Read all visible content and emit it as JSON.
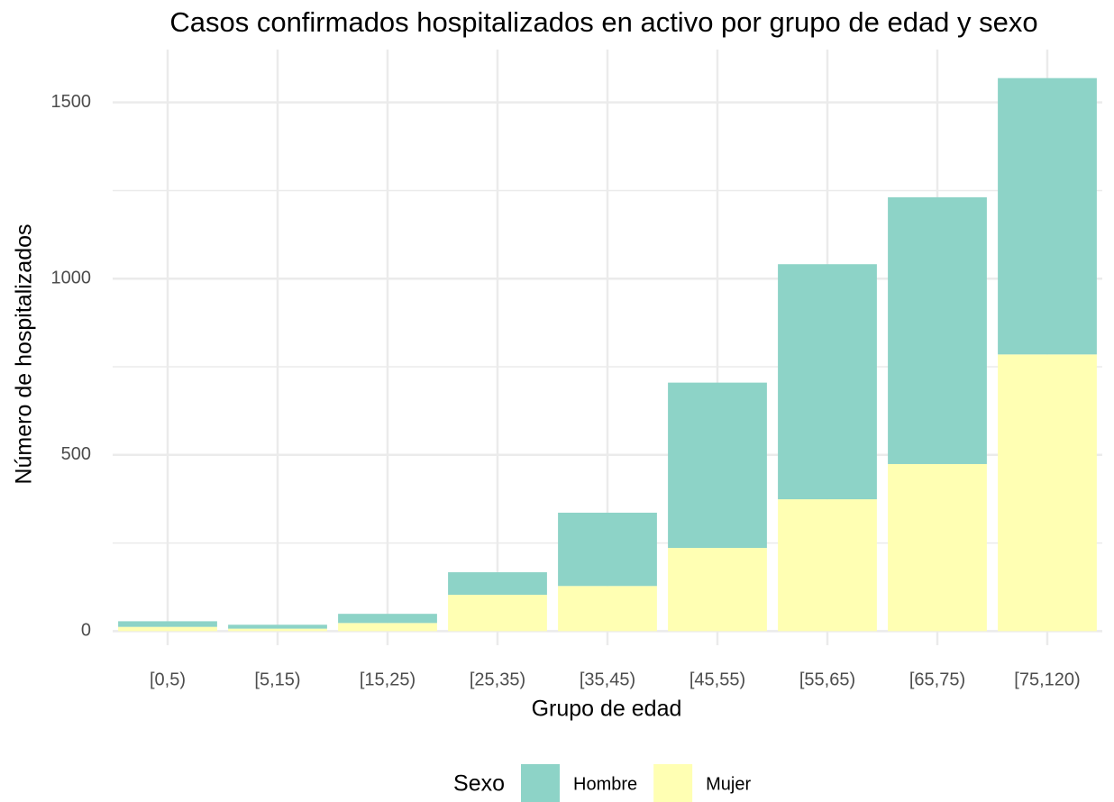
{
  "chart_data": {
    "type": "stacked_bar",
    "title": "Casos confirmados hospitalizados en activo por grupo de edad y sexo",
    "x_label": "Grupo de edad",
    "y_label": "Número de hospitalizados",
    "legend_title": "Sexo",
    "categories": [
      "[0,5)",
      "[5,15)",
      "[15,25)",
      "[25,35)",
      "[35,45)",
      "[45,55)",
      "[55,65)",
      "[65,75)",
      "[75,120)"
    ],
    "series": [
      {
        "name": "Hombre",
        "color": "#8dd3c7",
        "values": [
          16,
          11,
          26,
          64,
          208,
          469,
          667,
          757,
          784
        ]
      },
      {
        "name": "Mujer",
        "color": "#ffffb3",
        "values": [
          12,
          7,
          23,
          103,
          128,
          236,
          374,
          474,
          785
        ]
      }
    ],
    "ylim": [
      -40,
      1650
    ],
    "yticks": [
      0,
      500,
      1000,
      1500
    ],
    "grid": true,
    "legend": "bottom"
  }
}
